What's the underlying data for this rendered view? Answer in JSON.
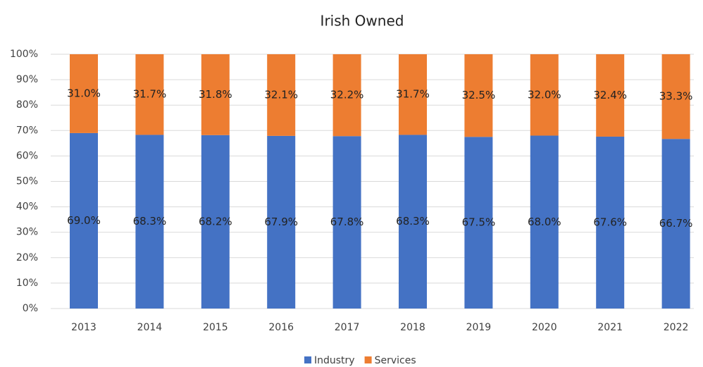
{
  "chart_data": {
    "type": "stacked_bar",
    "title": "Irish Owned",
    "categories": [
      "2013",
      "2014",
      "2015",
      "2016",
      "2017",
      "2018",
      "2019",
      "2020",
      "2021",
      "2022"
    ],
    "series": [
      {
        "name": "Industry",
        "color": "#4472c4",
        "values": [
          69.0,
          68.3,
          68.2,
          67.9,
          67.8,
          68.3,
          67.5,
          68.0,
          67.6,
          66.7
        ],
        "value_labels": [
          "69.0%",
          "68.3%",
          "68.2%",
          "67.9%",
          "67.8%",
          "68.3%",
          "67.5%",
          "68.0%",
          "67.6%",
          "66.7%"
        ]
      },
      {
        "name": "Services",
        "color": "#ed7d31",
        "values": [
          31.0,
          31.7,
          31.8,
          32.1,
          32.2,
          31.7,
          32.5,
          32.0,
          32.4,
          33.3
        ],
        "value_labels": [
          "31.0%",
          "31.7%",
          "31.8%",
          "32.1%",
          "32.2%",
          "31.7%",
          "32.5%",
          "32.0%",
          "32.4%",
          "33.3%"
        ]
      }
    ],
    "ylim": [
      0,
      100
    ],
    "yticks": [
      {
        "value": 0,
        "label": "0%"
      },
      {
        "value": 10,
        "label": "10%"
      },
      {
        "value": 20,
        "label": "20%"
      },
      {
        "value": 30,
        "label": "30%"
      },
      {
        "value": 40,
        "label": "40%"
      },
      {
        "value": 50,
        "label": "50%"
      },
      {
        "value": 60,
        "label": "60%"
      },
      {
        "value": 70,
        "label": "70%"
      },
      {
        "value": 80,
        "label": "80%"
      },
      {
        "value": 90,
        "label": "90%"
      },
      {
        "value": 100,
        "label": "100%"
      }
    ],
    "grid": true,
    "legend": "bottom"
  }
}
